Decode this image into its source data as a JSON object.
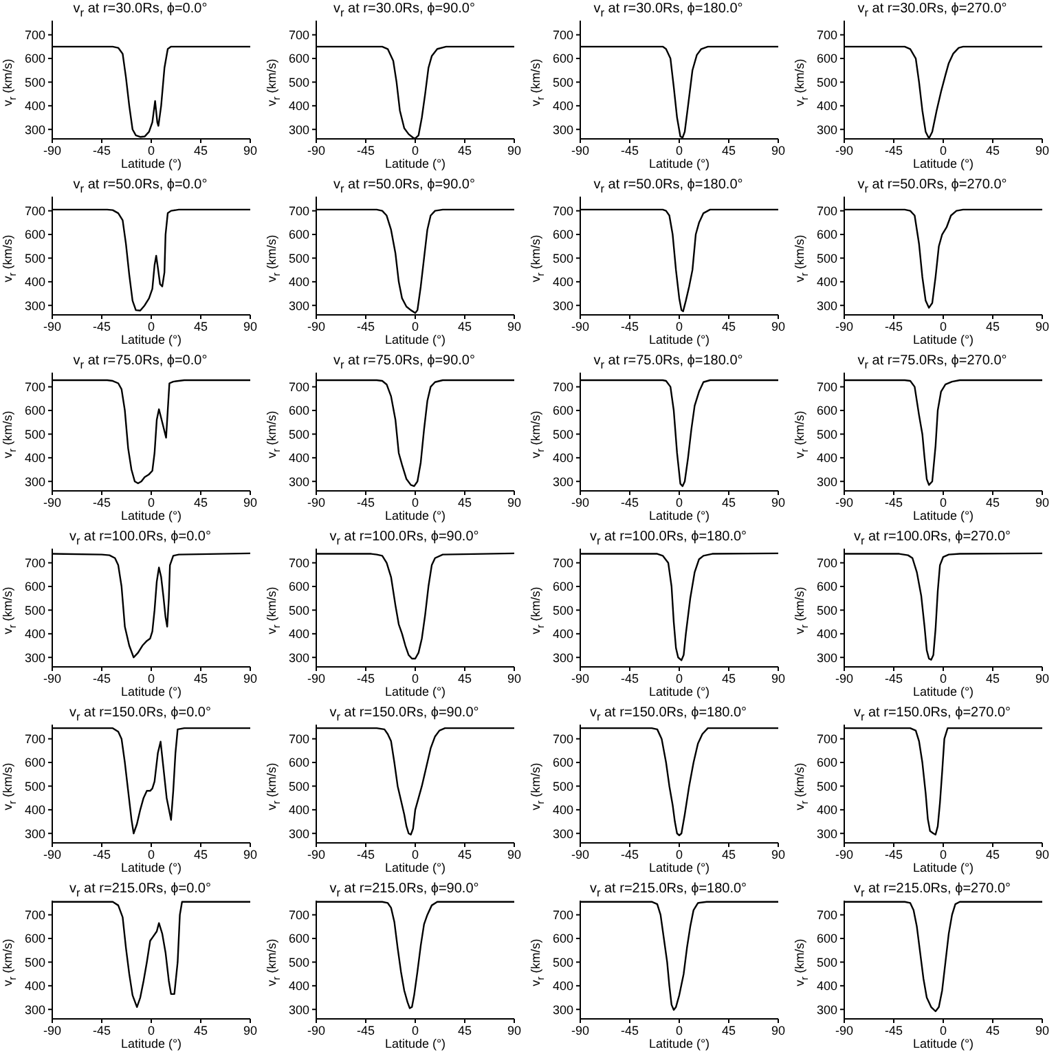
{
  "chart_data": [
    {
      "type": "line",
      "title": "v$_{r}$ at r=30.0Rs, ϕ=0.0°",
      "xlabel": "Latitude (°)",
      "ylabel": "v$_{r}$ (km/s)",
      "xlim": [
        -90,
        90
      ],
      "xticks": [
        -90,
        -45,
        0,
        45,
        90
      ],
      "ylim": [
        260,
        760
      ],
      "yticks": [
        300,
        400,
        500,
        600,
        700
      ],
      "color": "#000000",
      "x": [
        -90,
        -35,
        -30,
        -26,
        -23,
        -20,
        -17,
        -14,
        -10,
        -6,
        -2,
        1,
        3.5,
        5.5,
        6.5,
        9,
        12,
        15,
        18,
        90
      ],
      "values": [
        650,
        650,
        645,
        620,
        520,
        400,
        300,
        275,
        268,
        270,
        290,
        330,
        420,
        330,
        315,
        400,
        560,
        640,
        650,
        650
      ]
    },
    {
      "type": "line",
      "title": "v$_{r}$ at r=30.0Rs, ϕ=90.0°",
      "xlabel": "Latitude (°)",
      "ylabel": "v$_{r}$ (km/s)",
      "xlim": [
        -90,
        90
      ],
      "xticks": [
        -90,
        -45,
        0,
        45,
        90
      ],
      "ylim": [
        260,
        760
      ],
      "yticks": [
        300,
        400,
        500,
        600,
        700
      ],
      "color": "#000000",
      "x": [
        -90,
        -30,
        -25,
        -20,
        -17,
        -14,
        -10,
        -6,
        -2,
        0,
        3,
        6,
        9,
        12,
        15,
        20,
        28,
        90
      ],
      "values": [
        650,
        650,
        640,
        590,
        500,
        380,
        305,
        280,
        265,
        262,
        275,
        350,
        450,
        560,
        610,
        640,
        650,
        650
      ]
    },
    {
      "type": "line",
      "title": "v$_{r}$ at r=30.0Rs, ϕ=180.0°",
      "xlabel": "Latitude (°)",
      "ylabel": "v$_{r}$ (km/s)",
      "xlim": [
        -90,
        90
      ],
      "xticks": [
        -90,
        -45,
        0,
        45,
        90
      ],
      "ylim": [
        260,
        760
      ],
      "yticks": [
        300,
        400,
        500,
        600,
        700
      ],
      "color": "#000000",
      "x": [
        -90,
        -15,
        -12,
        -8,
        -5,
        -2,
        1,
        3,
        5,
        8,
        12,
        16,
        20,
        26,
        90
      ],
      "values": [
        650,
        650,
        640,
        600,
        480,
        350,
        270,
        265,
        290,
        400,
        550,
        615,
        640,
        650,
        650
      ]
    },
    {
      "type": "line",
      "title": "v$_{r}$ at r=30.0Rs, ϕ=270.0°",
      "xlabel": "Latitude (°)",
      "ylabel": "v$_{r}$ (km/s)",
      "xlim": [
        -90,
        90
      ],
      "xticks": [
        -90,
        -45,
        0,
        45,
        90
      ],
      "ylim": [
        260,
        760
      ],
      "yticks": [
        300,
        400,
        500,
        600,
        700
      ],
      "color": "#000000",
      "x": [
        -90,
        -35,
        -30,
        -25,
        -22,
        -19,
        -16,
        -13,
        -10,
        -6,
        -2,
        2,
        5,
        9,
        14,
        18,
        90
      ],
      "values": [
        650,
        650,
        640,
        600,
        500,
        380,
        290,
        262,
        290,
        380,
        460,
        530,
        580,
        620,
        645,
        650,
        650
      ]
    },
    {
      "type": "line",
      "title": "v$_{r}$ at r=50.0Rs, ϕ=0.0°",
      "xlabel": "Latitude (°)",
      "ylabel": "v$_{r}$ (km/s)",
      "xlim": [
        -90,
        90
      ],
      "xticks": [
        -90,
        -45,
        0,
        45,
        90
      ],
      "ylim": [
        260,
        760
      ],
      "yticks": [
        300,
        400,
        500,
        600,
        700
      ],
      "color": "#000000",
      "x": [
        -90,
        -40,
        -35,
        -30,
        -26,
        -23,
        -20,
        -17,
        -14,
        -10,
        -6,
        -2,
        1,
        3,
        4.5,
        6,
        8,
        10,
        12,
        13,
        15,
        18,
        25,
        90
      ],
      "values": [
        705,
        705,
        703,
        690,
        660,
        560,
        430,
        320,
        280,
        278,
        300,
        330,
        370,
        470,
        510,
        460,
        390,
        380,
        440,
        600,
        690,
        700,
        705,
        705
      ]
    },
    {
      "type": "line",
      "title": "v$_{r}$ at r=50.0Rs, ϕ=90.0°",
      "xlabel": "Latitude (°)",
      "ylabel": "v$_{r}$ (km/s)",
      "xlim": [
        -90,
        90
      ],
      "xticks": [
        -90,
        -45,
        0,
        45,
        90
      ],
      "ylim": [
        260,
        760
      ],
      "yticks": [
        300,
        400,
        500,
        600,
        700
      ],
      "color": "#000000",
      "x": [
        -90,
        -35,
        -30,
        -26,
        -22,
        -18,
        -15,
        -12,
        -8,
        -4,
        0,
        2,
        5,
        8,
        11,
        14,
        18,
        25,
        90
      ],
      "values": [
        705,
        705,
        700,
        680,
        620,
        520,
        400,
        330,
        295,
        280,
        268,
        280,
        380,
        500,
        620,
        680,
        700,
        705,
        705
      ]
    },
    {
      "type": "line",
      "title": "v$_{r}$ at r=50.0Rs, ϕ=180.0°",
      "xlabel": "Latitude (°)",
      "ylabel": "v$_{r}$ (km/s)",
      "xlim": [
        -90,
        90
      ],
      "xticks": [
        -90,
        -45,
        0,
        45,
        90
      ],
      "ylim": [
        260,
        760
      ],
      "yticks": [
        300,
        400,
        500,
        600,
        700
      ],
      "color": "#000000",
      "x": [
        -90,
        -15,
        -12,
        -9,
        -6,
        -3,
        0,
        2,
        3.5,
        6,
        9,
        12,
        15,
        18,
        22,
        28,
        90
      ],
      "values": [
        705,
        705,
        700,
        680,
        600,
        450,
        330,
        280,
        275,
        320,
        380,
        450,
        600,
        650,
        690,
        705,
        705
      ]
    },
    {
      "type": "line",
      "title": "v$_{r}$ at r=50.0Rs, ϕ=270.0°",
      "xlabel": "Latitude (°)",
      "ylabel": "v$_{r}$ (km/s)",
      "xlim": [
        -90,
        90
      ],
      "xticks": [
        -90,
        -45,
        0,
        45,
        90
      ],
      "ylim": [
        260,
        760
      ],
      "yticks": [
        300,
        400,
        500,
        600,
        700
      ],
      "color": "#000000",
      "x": [
        -90,
        -35,
        -30,
        -26,
        -22,
        -19,
        -16,
        -13,
        -10,
        -7,
        -4,
        -1,
        3,
        7,
        12,
        18,
        90
      ],
      "values": [
        705,
        705,
        700,
        680,
        560,
        420,
        320,
        290,
        310,
        420,
        550,
        600,
        630,
        680,
        700,
        705,
        705
      ]
    },
    {
      "type": "line",
      "title": "v$_{r}$ at r=75.0Rs, ϕ=0.0°",
      "xlabel": "Latitude (°)",
      "ylabel": "v$_{r}$ (km/s)",
      "xlim": [
        -90,
        90
      ],
      "xticks": [
        -90,
        -45,
        0,
        45,
        90
      ],
      "ylim": [
        260,
        760
      ],
      "yticks": [
        300,
        400,
        500,
        600,
        700
      ],
      "color": "#000000",
      "x": [
        -90,
        -40,
        -35,
        -30,
        -27,
        -24,
        -21,
        -18,
        -15,
        -12,
        -9,
        -6,
        -2,
        1,
        3,
        5,
        7,
        10,
        13.5,
        15,
        16.5,
        20,
        30,
        90
      ],
      "values": [
        728,
        728,
        725,
        715,
        690,
        600,
        440,
        350,
        300,
        292,
        300,
        318,
        330,
        345,
        420,
        560,
        605,
        550,
        485,
        600,
        715,
        722,
        728,
        728
      ]
    },
    {
      "type": "line",
      "title": "v$_{r}$ at r=75.0Rs, ϕ=90.0°",
      "xlabel": "Latitude (°)",
      "ylabel": "v$_{r}$ (km/s)",
      "xlim": [
        -90,
        90
      ],
      "xticks": [
        -90,
        -45,
        0,
        45,
        90
      ],
      "ylim": [
        260,
        760
      ],
      "yticks": [
        300,
        400,
        500,
        600,
        700
      ],
      "color": "#000000",
      "x": [
        -90,
        -35,
        -30,
        -26,
        -22,
        -18,
        -15,
        -12,
        -8,
        -4,
        -1,
        2,
        5,
        8,
        11,
        14,
        18,
        25,
        90
      ],
      "values": [
        728,
        728,
        725,
        710,
        660,
        560,
        420,
        370,
        310,
        285,
        280,
        300,
        380,
        520,
        640,
        700,
        720,
        728,
        728
      ]
    },
    {
      "type": "line",
      "title": "v$_{r}$ at r=75.0Rs, ϕ=180.0°",
      "xlabel": "Latitude (°)",
      "ylabel": "v$_{r}$ (km/s)",
      "xlim": [
        -90,
        90
      ],
      "xticks": [
        -90,
        -45,
        0,
        45,
        90
      ],
      "ylim": [
        260,
        760
      ],
      "yticks": [
        300,
        400,
        500,
        600,
        700
      ],
      "color": "#000000",
      "x": [
        -90,
        -15,
        -12,
        -8,
        -5,
        -2,
        1,
        3,
        5,
        8,
        11,
        14,
        18,
        22,
        28,
        90
      ],
      "values": [
        728,
        728,
        725,
        700,
        600,
        420,
        290,
        280,
        300,
        400,
        520,
        620,
        680,
        720,
        728,
        728
      ]
    },
    {
      "type": "line",
      "title": "v$_{r}$ at r=75.0Rs, ϕ=270.0°",
      "xlabel": "Latitude (°)",
      "ylabel": "v$_{r}$ (km/s)",
      "xlim": [
        -90,
        90
      ],
      "xticks": [
        -90,
        -45,
        0,
        45,
        90
      ],
      "ylim": [
        260,
        760
      ],
      "yticks": [
        300,
        400,
        500,
        600,
        700
      ],
      "color": "#000000",
      "x": [
        -90,
        -35,
        -30,
        -26,
        -22,
        -19,
        -17,
        -15,
        -13,
        -10,
        -7,
        -5,
        -2,
        2,
        8,
        15,
        90
      ],
      "values": [
        728,
        728,
        725,
        700,
        580,
        500,
        400,
        310,
        285,
        300,
        450,
        600,
        680,
        710,
        722,
        728,
        728
      ]
    },
    {
      "type": "line",
      "title": "v$_{r}$ at r=100.0Rs, ϕ=0.0°",
      "xlabel": "Latitude (°)",
      "ylabel": "v$_{r}$ (km/s)",
      "xlim": [
        -90,
        90
      ],
      "xticks": [
        -90,
        -45,
        0,
        45,
        90
      ],
      "ylim": [
        260,
        760
      ],
      "yticks": [
        300,
        400,
        500,
        600,
        700
      ],
      "color": "#000000",
      "x": [
        -90,
        -45,
        -38,
        -33,
        -30,
        -27,
        -24,
        -20,
        -16,
        -12,
        -8,
        -4,
        -1,
        1,
        3,
        5,
        7,
        9,
        11,
        13,
        14.5,
        16,
        17,
        20,
        25,
        90
      ],
      "values": [
        738,
        735,
        732,
        720,
        690,
        600,
        430,
        350,
        300,
        320,
        350,
        370,
        380,
        410,
        500,
        620,
        680,
        640,
        560,
        470,
        430,
        550,
        690,
        730,
        735,
        740
      ]
    },
    {
      "type": "line",
      "title": "v$_{r}$ at r=100.0Rs, ϕ=90.0°",
      "xlabel": "Latitude (°)",
      "ylabel": "v$_{r}$ (km/s)",
      "xlim": [
        -90,
        90
      ],
      "xticks": [
        -90,
        -45,
        0,
        45,
        90
      ],
      "ylim": [
        260,
        760
      ],
      "yticks": [
        300,
        400,
        500,
        600,
        700
      ],
      "color": "#000000",
      "x": [
        -90,
        -40,
        -35,
        -30,
        -26,
        -22,
        -18,
        -15,
        -12,
        -9,
        -6,
        -3,
        0,
        3,
        6,
        9,
        12,
        15,
        18,
        25,
        90
      ],
      "values": [
        738,
        738,
        735,
        730,
        700,
        640,
        520,
        440,
        400,
        350,
        310,
        295,
        295,
        320,
        380,
        480,
        600,
        690,
        720,
        735,
        740
      ]
    },
    {
      "type": "line",
      "title": "v$_{r}$ at r=100.0Rs, ϕ=180.0°",
      "xlabel": "Latitude (°)",
      "ylabel": "v$_{r}$ (km/s)",
      "xlim": [
        -90,
        90
      ],
      "xticks": [
        -90,
        -45,
        0,
        45,
        90
      ],
      "ylim": [
        260,
        760
      ],
      "yticks": [
        300,
        400,
        500,
        600,
        700
      ],
      "color": "#000000",
      "x": [
        -90,
        -20,
        -15,
        -10,
        -7,
        -5,
        -3,
        -1,
        2,
        4,
        6,
        10,
        14,
        18,
        22,
        30,
        90
      ],
      "values": [
        738,
        738,
        730,
        700,
        600,
        450,
        340,
        300,
        288,
        310,
        400,
        550,
        660,
        715,
        730,
        738,
        740
      ]
    },
    {
      "type": "line",
      "title": "v$_{r}$ at r=100.0Rs, ϕ=270.0°",
      "xlabel": "Latitude (°)",
      "ylabel": "v$_{r}$ (km/s)",
      "xlim": [
        -90,
        90
      ],
      "xticks": [
        -90,
        -45,
        0,
        45,
        90
      ],
      "ylim": [
        260,
        760
      ],
      "yticks": [
        300,
        400,
        500,
        600,
        700
      ],
      "color": "#000000",
      "x": [
        -90,
        -40,
        -32,
        -28,
        -24,
        -20,
        -17,
        -15,
        -13,
        -11,
        -9,
        -7,
        -5,
        -3,
        0,
        5,
        15,
        90
      ],
      "values": [
        738,
        738,
        732,
        720,
        660,
        560,
        430,
        330,
        295,
        290,
        310,
        420,
        580,
        690,
        725,
        735,
        738,
        740
      ]
    },
    {
      "type": "line",
      "title": "v$_{r}$ at r=150.0Rs, ϕ=0.0°",
      "xlabel": "Latitude (°)",
      "ylabel": "v$_{r}$ (km/s)",
      "xlim": [
        -90,
        90
      ],
      "xticks": [
        -90,
        -45,
        0,
        45,
        90
      ],
      "ylim": [
        260,
        760
      ],
      "yticks": [
        300,
        400,
        500,
        600,
        700
      ],
      "color": "#000000",
      "x": [
        -90,
        -35,
        -30,
        -27,
        -24,
        -21,
        -18,
        -16,
        -13,
        -10,
        -7,
        -4,
        -1,
        1,
        3,
        6,
        8.5,
        11,
        14,
        18,
        20,
        22,
        24,
        30,
        90
      ],
      "values": [
        745,
        745,
        730,
        700,
        600,
        480,
        360,
        300,
        340,
        400,
        450,
        480,
        480,
        490,
        520,
        640,
        688,
        580,
        450,
        357,
        480,
        640,
        740,
        745,
        745
      ]
    },
    {
      "type": "line",
      "title": "v$_{r}$ at r=150.0Rs, ϕ=90.0°",
      "xlabel": "Latitude (°)",
      "ylabel": "v$_{r}$ (km/s)",
      "xlim": [
        -90,
        90
      ],
      "xticks": [
        -90,
        -45,
        0,
        45,
        90
      ],
      "ylim": [
        260,
        760
      ],
      "yticks": [
        300,
        400,
        500,
        600,
        700
      ],
      "color": "#000000",
      "x": [
        -90,
        -35,
        -28,
        -25,
        -22,
        -19,
        -16,
        -13,
        -10,
        -8,
        -6,
        -4,
        -2,
        0,
        3,
        6,
        10,
        14,
        18,
        22,
        27,
        90
      ],
      "values": [
        745,
        745,
        740,
        720,
        690,
        600,
        500,
        440,
        380,
        330,
        300,
        295,
        320,
        400,
        450,
        500,
        580,
        660,
        710,
        735,
        745,
        745
      ]
    },
    {
      "type": "line",
      "title": "v$_{r}$ at r=150.0Rs, ϕ=180.0°",
      "xlabel": "Latitude (°)",
      "ylabel": "v$_{r}$ (km/s)",
      "xlim": [
        -90,
        90
      ],
      "xticks": [
        -90,
        -45,
        0,
        45,
        90
      ],
      "ylim": [
        260,
        760
      ],
      "yticks": [
        300,
        400,
        500,
        600,
        700
      ],
      "color": "#000000",
      "x": [
        -90,
        -25,
        -20,
        -16,
        -12,
        -9,
        -6,
        -4,
        -2,
        0,
        2,
        5,
        9,
        13,
        17,
        21,
        26,
        90
      ],
      "values": [
        745,
        745,
        740,
        700,
        600,
        500,
        420,
        350,
        300,
        292,
        300,
        380,
        500,
        600,
        680,
        720,
        745,
        745
      ]
    },
    {
      "type": "line",
      "title": "v$_{r}$ at r=150.0Rs, ϕ=270.0°",
      "xlabel": "Latitude (°)",
      "ylabel": "v$_{r}$ (km/s)",
      "xlim": [
        -90,
        90
      ],
      "xticks": [
        -90,
        -45,
        0,
        45,
        90
      ],
      "ylim": [
        260,
        760
      ],
      "yticks": [
        300,
        400,
        500,
        600,
        700
      ],
      "color": "#000000",
      "x": [
        -90,
        -30,
        -25,
        -22,
        -19,
        -16,
        -14,
        -12,
        -9,
        -7,
        -5,
        -3,
        -1,
        1,
        4,
        90
      ],
      "values": [
        745,
        745,
        735,
        690,
        600,
        470,
        360,
        310,
        300,
        295,
        330,
        430,
        560,
        700,
        745,
        745
      ]
    },
    {
      "type": "line",
      "title": "v$_{r}$ at r=215.0Rs, ϕ=0.0°",
      "xlabel": "Latitude (°)",
      "ylabel": "v$_{r}$ (km/s)",
      "xlim": [
        -90,
        90
      ],
      "xticks": [
        -90,
        -45,
        0,
        45,
        90
      ],
      "ylim": [
        260,
        760
      ],
      "yticks": [
        300,
        400,
        500,
        600,
        700
      ],
      "color": "#000000",
      "x": [
        -90,
        -35,
        -30,
        -26,
        -23,
        -20,
        -17,
        -13,
        -10,
        -7,
        -4,
        -1,
        2,
        5,
        7,
        10,
        13,
        16,
        18,
        21,
        24,
        26,
        28,
        90
      ],
      "values": [
        755,
        755,
        740,
        690,
        560,
        450,
        360,
        310,
        350,
        420,
        500,
        590,
        610,
        630,
        665,
        620,
        540,
        420,
        365,
        365,
        500,
        700,
        755,
        755
      ]
    },
    {
      "type": "line",
      "title": "v$_{r}$ at r=215.0Rs, ϕ=90.0°",
      "xlabel": "Latitude (°)",
      "ylabel": "v$_{r}$ (km/s)",
      "xlim": [
        -90,
        90
      ],
      "xticks": [
        -90,
        -45,
        0,
        45,
        90
      ],
      "ylim": [
        260,
        760
      ],
      "yticks": [
        300,
        400,
        500,
        600,
        700
      ],
      "color": "#000000",
      "x": [
        -90,
        -30,
        -25,
        -22,
        -19,
        -16,
        -13,
        -10,
        -7,
        -5,
        -3,
        -1,
        2,
        5,
        8,
        11,
        15,
        20,
        90
      ],
      "values": [
        755,
        755,
        750,
        730,
        670,
        560,
        460,
        380,
        330,
        305,
        310,
        360,
        460,
        570,
        660,
        700,
        740,
        755,
        755
      ]
    },
    {
      "type": "line",
      "title": "v$_{r}$ at r=215.0Rs, ϕ=180.0°",
      "xlabel": "Latitude (°)",
      "ylabel": "v$_{r}$ (km/s)",
      "xlim": [
        -90,
        90
      ],
      "xticks": [
        -90,
        -45,
        0,
        45,
        90
      ],
      "ylim": [
        260,
        760
      ],
      "yticks": [
        300,
        400,
        500,
        600,
        700
      ],
      "color": "#000000",
      "x": [
        -90,
        -25,
        -20,
        -17,
        -14,
        -11,
        -9,
        -7,
        -5,
        -3,
        0,
        4,
        7,
        10,
        13,
        17,
        25,
        90
      ],
      "values": [
        755,
        755,
        745,
        700,
        600,
        500,
        400,
        320,
        298,
        310,
        360,
        450,
        560,
        650,
        720,
        750,
        755,
        755
      ]
    },
    {
      "type": "line",
      "title": "v$_{r}$ at r=215.0Rs, ϕ=270.0°",
      "xlabel": "Latitude (°)",
      "ylabel": "v$_{r}$ (km/s)",
      "xlim": [
        -90,
        90
      ],
      "xticks": [
        -90,
        -45,
        0,
        45,
        90
      ],
      "ylim": [
        260,
        760
      ],
      "yticks": [
        300,
        400,
        500,
        600,
        700
      ],
      "color": "#000000",
      "x": [
        -90,
        -35,
        -30,
        -27,
        -24,
        -21,
        -18,
        -15,
        -11,
        -7,
        -4,
        -1,
        2,
        5,
        8,
        11,
        15,
        90
      ],
      "values": [
        755,
        755,
        750,
        720,
        650,
        540,
        430,
        350,
        310,
        292,
        310,
        380,
        500,
        620,
        700,
        745,
        755,
        755
      ]
    }
  ]
}
